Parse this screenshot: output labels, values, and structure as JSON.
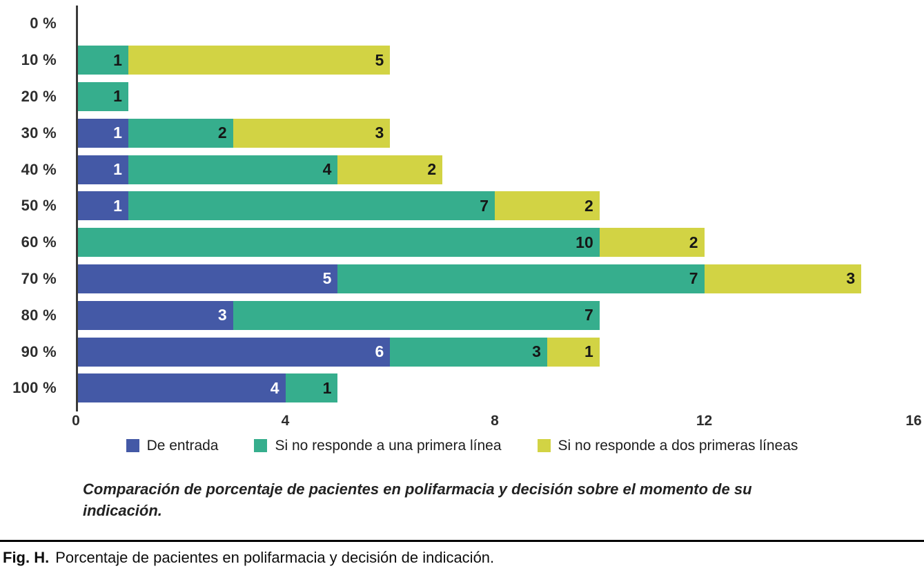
{
  "chart_data": {
    "type": "bar",
    "orientation": "horizontal",
    "stacked": true,
    "title": "",
    "xlabel": "",
    "ylabel": "",
    "grid": false,
    "legend_position": "bottom",
    "xlim": [
      0,
      16
    ],
    "x_ticks": [
      "0",
      "4",
      "8",
      "12",
      "16"
    ],
    "axis_color": "#3a3a3a",
    "categories": [
      "0 %",
      "10 %",
      "20 %",
      "30 %",
      "40 %",
      "50 %",
      "60 %",
      "70 %",
      "80 %",
      "90 %",
      "100 %"
    ],
    "series": [
      {
        "name": "De entrada",
        "color": "#4459a6",
        "label_color": "#ffffff",
        "values": [
          0,
          0,
          0,
          1,
          1,
          1,
          0,
          5,
          3,
          6,
          4
        ]
      },
      {
        "name": "Si no responde a una primera línea",
        "color": "#36ae8d",
        "label_color": "#161616",
        "values": [
          0,
          1,
          1,
          2,
          4,
          7,
          10,
          7,
          7,
          3,
          1
        ]
      },
      {
        "name": "Si no responde a dos primeras líneas",
        "color": "#d2d344",
        "label_color": "#161616",
        "values": [
          0,
          5,
          0,
          3,
          2,
          2,
          2,
          3,
          0,
          1,
          0
        ]
      }
    ]
  },
  "captions": {
    "chart_note": "Comparación de porcentaje de pacientes en polifarmacia y decisión sobre el momento de su indicación.",
    "fig_label": "Fig. H.",
    "fig_text": "Porcentaje de pacientes en polifarmacia y decisión de indicación."
  }
}
